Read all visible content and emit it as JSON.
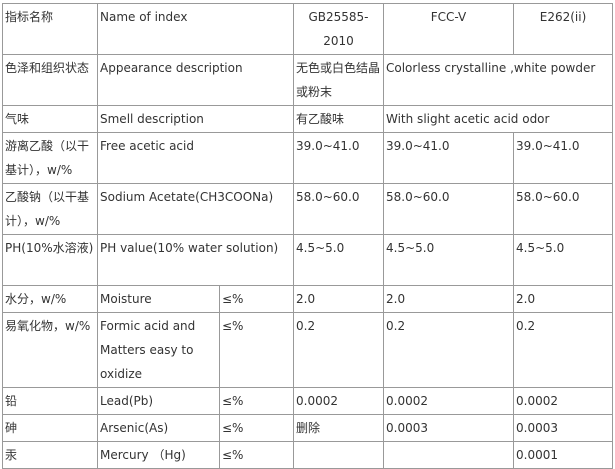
{
  "table": {
    "rows": [
      [
        "指标名称",
        "Name of index",
        "GB25585-2010",
        "FCC-V",
        "E262(ii)"
      ],
      [
        "色泽和组织状态",
        "Appearance description",
        "无色或白色结晶或粉末",
        "Colorless crystalline ,white powder"
      ],
      [
        "气味",
        "Smell description",
        "有乙酸味",
        "With slight acetic acid odor"
      ],
      [
        "游离乙酸（以干基计），w/%",
        "Free acetic acid",
        "39.0~41.0",
        "39.0~41.0",
        "39.0~41.0"
      ],
      [
        "乙酸钠（以干基计），w/%",
        "Sodium Acetate(CH3COONa)",
        "58.0~60.0",
        "58.0~60.0",
        "58.0~60.0"
      ],
      [
        "PH(10%水溶液)",
        "PH value(10% water solution)",
        "4.5~5.0",
        "4.5~5.0",
        "4.5~5.0"
      ],
      [
        "水分，w/%",
        "Moisture",
        "≤%",
        "2.0",
        "2.0",
        "2.0"
      ],
      [
        "易氧化物，w/%",
        "Formic acid and Matters easy to oxidize",
        "≤%",
        "0.2",
        "0.2",
        "0.2"
      ],
      [
        "铅",
        "Lead(Pb)",
        "≤%",
        "0.0002",
        "0.0002",
        "0.0002"
      ],
      [
        "砷",
        "Arsenic(As)",
        "≤%",
        "删除",
        "0.0003",
        "0.0003"
      ],
      [
        "汞",
        "Mercury （Hg)",
        "≤%",
        "0.0001"
      ]
    ]
  }
}
